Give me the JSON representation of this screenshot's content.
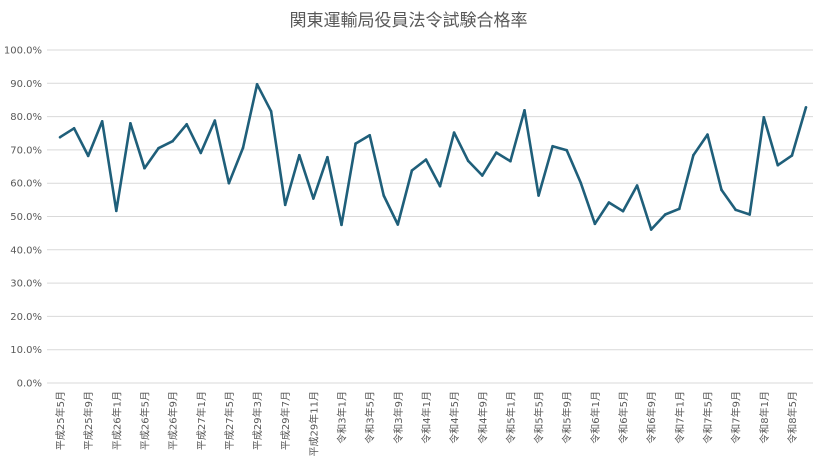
{
  "chart_data": {
    "type": "line",
    "title": "関東運輸局役員法令試験合格率",
    "xlabel": "",
    "ylabel": "",
    "ylim": [
      0,
      100
    ],
    "y_ticks": [
      "0.0%",
      "10.0%",
      "20.0%",
      "30.0%",
      "40.0%",
      "50.0%",
      "60.0%",
      "70.0%",
      "80.0%",
      "90.0%",
      "100.0%"
    ],
    "grid": true,
    "line_color": "#1f5f7a",
    "x_tick_labels": [
      "平成25年5月",
      "平成25年9月",
      "平成26年1月",
      "平成26年5月",
      "平成26年9月",
      "平成27年1月",
      "平成27年5月",
      "平成29年3月",
      "平成29年7月",
      "平成29年11月",
      "令和3年1月",
      "令和3年5月",
      "令和3年9月",
      "令和4年1月",
      "令和4年5月",
      "令和4年9月",
      "令和5年1月",
      "令和5年5月",
      "令和5年9月",
      "令和6年1月",
      "令和6年5月",
      "令和6年9月",
      "令和7年1月",
      "令和7年5月",
      "令和7年9月",
      "令和8年1月",
      "令和8年5月"
    ],
    "series": [
      {
        "values": [
          73.8,
          76.5,
          68.2,
          78.6,
          51.7,
          78.0,
          64.5,
          70.5,
          72.6,
          77.7,
          69.1,
          78.8,
          60.0,
          70.6,
          89.7,
          81.6,
          53.5,
          68.4,
          55.4,
          67.8,
          47.5,
          71.9,
          74.4,
          56.3,
          47.6,
          63.8,
          67.1,
          59.1,
          75.2,
          66.7,
          62.3,
          69.2,
          66.6,
          81.9,
          56.3,
          71.1,
          69.9,
          60.1,
          47.8,
          54.2,
          51.6,
          59.3,
          46.1,
          50.6,
          52.3,
          68.4,
          74.6,
          58.0,
          52.0,
          50.6,
          79.8,
          65.4,
          68.3,
          82.8
        ]
      }
    ]
  }
}
